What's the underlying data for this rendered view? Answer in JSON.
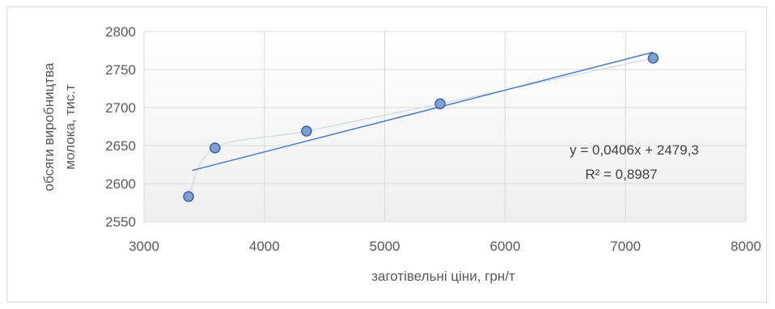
{
  "chart_data": {
    "type": "scatter",
    "xlabel": "заготівельні ціни, грн/т",
    "ylabel_line1": "обсяги виробництва",
    "ylabel_line2": "молока, тис.т",
    "xlim": [
      3000,
      8000
    ],
    "ylim": [
      2550,
      2800
    ],
    "x_ticks": [
      "3000",
      "4000",
      "5000",
      "6000",
      "7000",
      "8000"
    ],
    "y_ticks": [
      "2550",
      "2600",
      "2650",
      "2700",
      "2750",
      "2800"
    ],
    "x_tick_values": [
      3000,
      4000,
      5000,
      6000,
      7000,
      8000
    ],
    "y_tick_values": [
      2550,
      2600,
      2650,
      2700,
      2750,
      2800
    ],
    "points": [
      {
        "x": 3370,
        "y": 2583
      },
      {
        "x": 3590,
        "y": 2647
      },
      {
        "x": 4350,
        "y": 2669
      },
      {
        "x": 5460,
        "y": 2705
      },
      {
        "x": 7230,
        "y": 2765
      }
    ],
    "trendline": {
      "slope": 0.0406,
      "intercept": 2479.3,
      "x_range": [
        3400,
        7230
      ]
    },
    "equation": "y = 0,0406x + 2479,3",
    "r_squared": "R² = 0,8987",
    "grid": true,
    "smoothed_line": true,
    "colors": {
      "marker_fill": "#7f9fd4",
      "marker_stroke": "#3f62a0",
      "trendline": "#4a7cc7",
      "smooth_line": "#cfd7e6",
      "grid": "#d9d9d9"
    }
  }
}
